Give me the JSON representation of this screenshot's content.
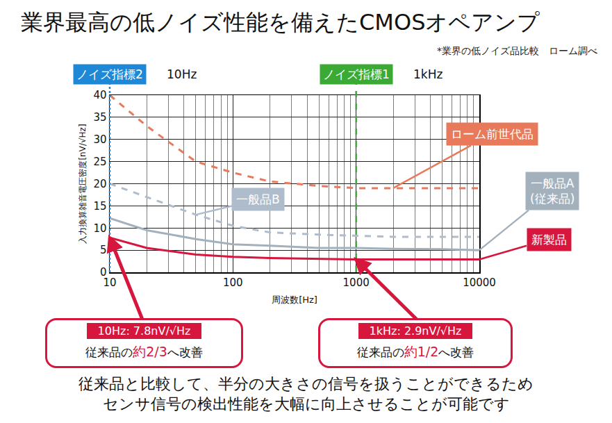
{
  "chart_data": {
    "type": "line",
    "title": "業界最高の低ノイズ性能を備えたCMOSオペアンプ",
    "subtitle": "*業界の低ノイズ品比較　ローム調べ",
    "x_label": "周波数[Hz]",
    "y_label": "入力換算雑音電圧密度[nV/√Hz]",
    "log": "x",
    "grid": true,
    "x": [
      10,
      20,
      50,
      100,
      200,
      500,
      1000,
      2000,
      5000,
      10000
    ],
    "xlim": [
      10,
      10000
    ],
    "xticks": [
      10,
      100,
      1000,
      10000
    ],
    "ylim": [
      0,
      40
    ],
    "yticks": [
      0,
      5,
      10,
      15,
      20,
      25,
      30,
      35,
      40
    ],
    "series": [
      {
        "name": "ローム前世代品",
        "color": "#e8795a",
        "line_style": "dash",
        "values": [
          40,
          33,
          25,
          22.5,
          20.5,
          19.5,
          19,
          19,
          19,
          19
        ]
      },
      {
        "name": "一般品B",
        "color": "#aebccb",
        "line_style": "dash",
        "values": [
          20,
          17,
          13,
          10.5,
          9,
          8.5,
          8.2,
          8,
          8,
          8
        ]
      },
      {
        "name": "一般品A\n(従来品)",
        "color": "#a3b1bd",
        "line_style": "solid",
        "values": [
          12.2,
          9.5,
          7.5,
          6.3,
          6,
          5.5,
          5.5,
          5.3,
          5.2,
          5
        ]
      },
      {
        "name": "新製品",
        "color": "#d6163d",
        "line_style": "solid",
        "values": [
          7.8,
          5.5,
          4,
          3.5,
          3.2,
          3,
          2.9,
          2.9,
          2.9,
          2.9
        ]
      }
    ],
    "markers": [
      {
        "x": 10,
        "name": "ノイズ指標2",
        "label": "10Hz",
        "color": "#1e88d6",
        "line_style": "dot"
      },
      {
        "x": 1000,
        "name": "ノイズ指標1",
        "label": "1kHz",
        "color": "#3aaa35",
        "line_style": "dash"
      }
    ],
    "callouts": [
      {
        "x": 10,
        "y": 7.8,
        "label": "10Hz: 7.8nV/√Hz",
        "text_before": "従来品の",
        "highlight": "約2/3",
        "text_after": "へ改善"
      },
      {
        "x": 1000,
        "y": 2.9,
        "label": "1kHz: 2.9nV/√Hz",
        "text_before": "従来品の",
        "highlight": "約1/2",
        "text_after": "へ改善"
      }
    ],
    "footer": "従来品と比較して、半分の大きさの信号を扱うことができるため\nセンサ信号の検出性能を大幅に向上させることが可能です"
  }
}
